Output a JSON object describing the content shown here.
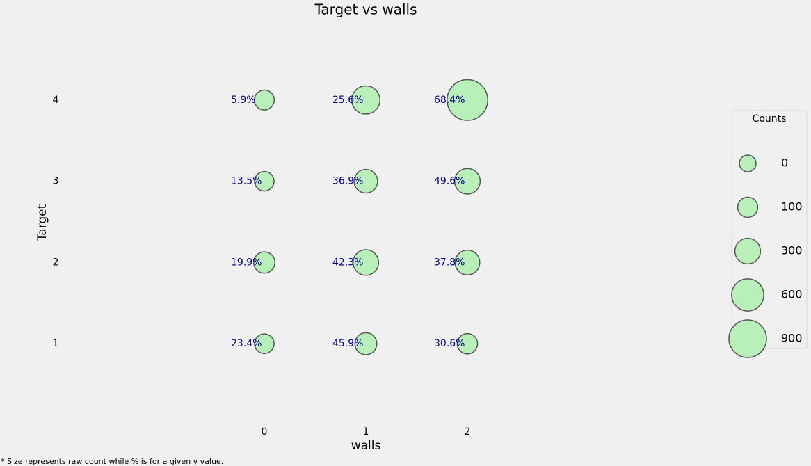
{
  "chart_data": {
    "type": "scatter",
    "title": "Target vs walls",
    "x_label": "walls",
    "y_label": "Target",
    "x": [
      0,
      1,
      2,
      0,
      1,
      2,
      0,
      1,
      2,
      0,
      1,
      2
    ],
    "y": [
      4,
      4,
      4,
      3,
      3,
      3,
      2,
      2,
      2,
      1,
      1,
      1
    ],
    "sizes": [
      94,
      410,
      1094,
      81,
      221,
      298,
      139,
      296,
      265,
      82,
      161,
      107
    ],
    "percent_labels": [
      "5.9%",
      "25.6%",
      "68.4%",
      "13.5%",
      "36.9%",
      "49.6%",
      "19.9%",
      "42.3%",
      "37.8%",
      "23.4%",
      "45.9%",
      "30.6%"
    ],
    "color": "#b9efb9",
    "xlim": [
      -2,
      4.5
    ],
    "ylim": [
      0,
      5
    ],
    "xticks": [
      0,
      1,
      2
    ],
    "yticks": [
      1,
      2,
      3,
      4
    ],
    "grid": false,
    "size_legend": {
      "title": "Counts",
      "values": [
        0,
        100,
        300,
        600,
        900
      ]
    },
    "footnote": "* Size represents raw count while % is for a given y value."
  }
}
